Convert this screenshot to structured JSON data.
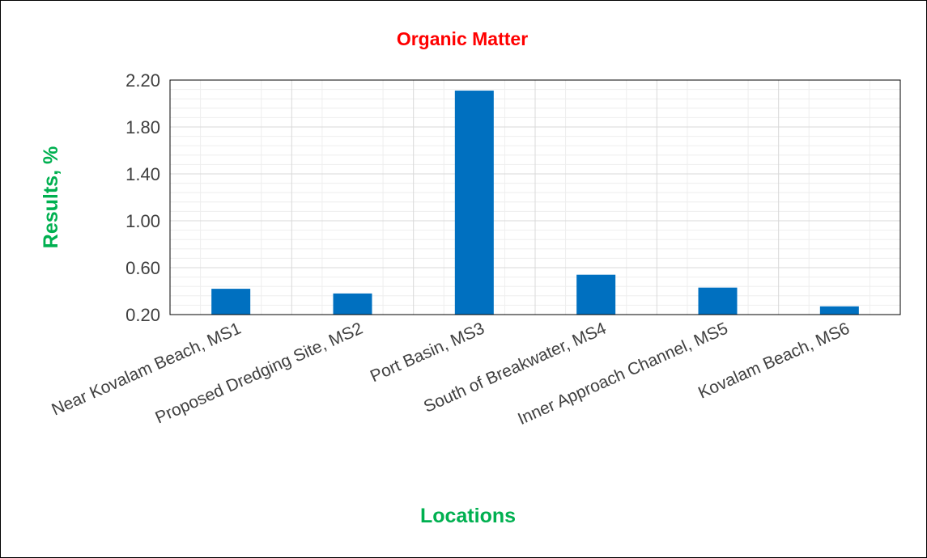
{
  "chart_data": {
    "type": "bar",
    "title": "Organic Matter",
    "xlabel": "Locations",
    "ylabel": "Results, %",
    "categories": [
      "Near Kovalam Beach, MS1",
      "Proposed Dredging Site, MS2",
      "Port Basin, MS3",
      "South of Breakwater, MS4",
      "Inner Approach Channel, MS5",
      "Kovalam Beach, MS6"
    ],
    "values": [
      0.42,
      0.38,
      2.11,
      0.54,
      0.43,
      0.27
    ],
    "ylim": [
      0.2,
      2.2
    ],
    "yticks": [
      "0.20",
      "0.60",
      "1.00",
      "1.40",
      "1.80",
      "2.20"
    ],
    "grid": true,
    "legend": "none"
  },
  "colors": {
    "title": "#FF0000",
    "axis_titles": "#00B050",
    "bar": "#0070C0",
    "major_grid": "#D9D9D9",
    "minor_grid": "#EEEEEE"
  }
}
